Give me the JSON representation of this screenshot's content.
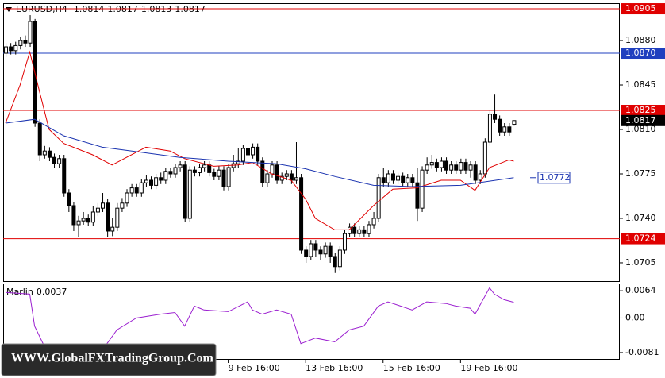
{
  "chart_data": [
    {
      "type": "candlestick",
      "title": "EURUSD,H4",
      "open": [
        1.087,
        1.0875,
        1.0872,
        1.0876,
        1.088,
        1.0878,
        1.0895,
        1.0815,
        1.079,
        1.0793,
        1.0788,
        1.0783,
        1.0787,
        1.076,
        1.075,
        1.0735,
        1.0738,
        1.074,
        1.0737,
        1.0745,
        1.0748,
        1.0752,
        1.073,
        1.0733,
        1.0748,
        1.0752,
        1.076,
        1.0764,
        1.076,
        1.0768,
        1.077,
        1.0766,
        1.0772,
        1.077,
        1.0777,
        1.0775,
        1.078,
        1.0782,
        1.074,
        1.0778,
        1.0776,
        1.078,
        1.0782,
        1.0776,
        1.0773,
        1.0778,
        1.0765,
        1.078,
        1.0783,
        1.0785,
        1.0795,
        1.079,
        1.0796,
        1.0785,
        1.0768,
        1.0775,
        1.0782,
        1.077,
        1.0773,
        1.0775,
        1.077,
        1.0772,
        1.0715,
        1.071,
        1.072,
        1.0715,
        1.0712,
        1.0718,
        1.071,
        1.0702,
        1.0715,
        1.0728,
        1.0733,
        1.0728,
        1.0731,
        1.0728,
        1.0735,
        1.074,
        1.0772,
        1.0768,
        1.0775,
        1.077,
        1.0773,
        1.0768,
        1.0772,
        1.0768,
        1.0748,
        1.0778,
        1.0782,
        1.0784,
        1.078,
        1.0785,
        1.0778,
        1.0782,
        1.0778,
        1.0784,
        1.0778,
        1.0782,
        1.077,
        1.0775,
        1.08,
        1.0822,
        1.0818,
        1.0808,
        1.0812,
        1.0814
      ],
      "high": [
        1.0878,
        1.0878,
        1.0879,
        1.0883,
        1.0884,
        1.09,
        1.0897,
        1.0818,
        1.0797,
        1.0796,
        1.0791,
        1.079,
        1.079,
        1.0763,
        1.0753,
        1.0742,
        1.0745,
        1.0743,
        1.075,
        1.0752,
        1.076,
        1.0755,
        1.074,
        1.0752,
        1.0756,
        1.0763,
        1.0767,
        1.0767,
        1.0771,
        1.0774,
        1.0773,
        1.0775,
        1.0776,
        1.078,
        1.078,
        1.0783,
        1.0785,
        1.0785,
        1.0781,
        1.0781,
        1.0783,
        1.0785,
        1.0785,
        1.0779,
        1.0781,
        1.0781,
        1.0783,
        1.079,
        1.0795,
        1.0798,
        1.0798,
        1.0799,
        1.0799,
        1.0788,
        1.0778,
        1.0785,
        1.0785,
        1.0776,
        1.0778,
        1.0778,
        1.08,
        1.0775,
        1.0718,
        1.0723,
        1.0723,
        1.0718,
        1.0721,
        1.0721,
        1.0713,
        1.0718,
        1.0731,
        1.0736,
        1.0736,
        1.0734,
        1.0734,
        1.0738,
        1.0745,
        1.0775,
        1.078,
        1.0778,
        1.0778,
        1.0776,
        1.0776,
        1.0775,
        1.0775,
        1.078,
        1.0781,
        1.0788,
        1.079,
        1.0787,
        1.0788,
        1.0788,
        1.0785,
        1.0785,
        1.0787,
        1.0787,
        1.0785,
        1.0785,
        1.0778,
        1.0803,
        1.0825,
        1.0838,
        1.0821,
        1.0815,
        1.0815,
        1.0817
      ],
      "low": [
        1.0867,
        1.0869,
        1.0869,
        1.0873,
        1.0875,
        1.0875,
        1.0812,
        1.0785,
        1.0787,
        1.0785,
        1.078,
        1.078,
        1.0757,
        1.0745,
        1.073,
        1.0725,
        1.0735,
        1.0734,
        1.0734,
        1.0742,
        1.0745,
        1.0725,
        1.0726,
        1.073,
        1.0745,
        1.0749,
        1.0757,
        1.0757,
        1.0757,
        1.0765,
        1.0763,
        1.0763,
        1.0767,
        1.0767,
        1.0772,
        1.0772,
        1.0777,
        1.0737,
        1.0737,
        1.0773,
        1.0773,
        1.0777,
        1.0773,
        1.077,
        1.077,
        1.0762,
        1.0762,
        1.0777,
        1.078,
        1.0782,
        1.0787,
        1.0787,
        1.0782,
        1.0765,
        1.0765,
        1.0772,
        1.0767,
        1.0767,
        1.077,
        1.0767,
        1.0767,
        1.0712,
        1.0705,
        1.0707,
        1.071,
        1.0707,
        1.0709,
        1.0705,
        1.0697,
        1.0699,
        1.0712,
        1.0725,
        1.0725,
        1.0725,
        1.0725,
        1.0725,
        1.0732,
        1.0737,
        1.0765,
        1.0765,
        1.0767,
        1.0767,
        1.0765,
        1.0765,
        1.0765,
        1.0738,
        1.0745,
        1.0775,
        1.0779,
        1.0777,
        1.0777,
        1.0775,
        1.0775,
        1.0775,
        1.0775,
        1.0775,
        1.0772,
        1.0767,
        1.0767,
        1.0772,
        1.0797,
        1.0815,
        1.0805,
        1.0805,
        1.0805,
        1.0813
      ],
      "close": [
        1.0875,
        1.0872,
        1.0876,
        1.088,
        1.0878,
        1.0895,
        1.0815,
        1.079,
        1.0793,
        1.0788,
        1.0783,
        1.0787,
        1.076,
        1.075,
        1.0735,
        1.0738,
        1.074,
        1.0737,
        1.0745,
        1.0748,
        1.0752,
        1.073,
        1.0733,
        1.0748,
        1.0752,
        1.076,
        1.0764,
        1.076,
        1.0768,
        1.077,
        1.0766,
        1.0772,
        1.077,
        1.0777,
        1.0775,
        1.078,
        1.0782,
        1.074,
        1.0778,
        1.0776,
        1.078,
        1.0782,
        1.0776,
        1.0773,
        1.0778,
        1.0765,
        1.078,
        1.0783,
        1.0785,
        1.0795,
        1.079,
        1.0796,
        1.0785,
        1.0768,
        1.0775,
        1.0782,
        1.077,
        1.0773,
        1.0775,
        1.077,
        1.0772,
        1.0715,
        1.071,
        1.072,
        1.0715,
        1.0712,
        1.0718,
        1.071,
        1.0702,
        1.0715,
        1.0728,
        1.0733,
        1.0728,
        1.0731,
        1.0728,
        1.0735,
        1.074,
        1.0772,
        1.0768,
        1.0775,
        1.077,
        1.0773,
        1.0768,
        1.0772,
        1.0768,
        1.0748,
        1.0778,
        1.0782,
        1.0784,
        1.078,
        1.0785,
        1.0778,
        1.0782,
        1.0778,
        1.0784,
        1.0778,
        1.0782,
        1.077,
        1.0775,
        1.08,
        1.0822,
        1.0818,
        1.0808,
        1.0812,
        1.0808,
        1.0817
      ],
      "series": [
        {
          "color": "#e00000",
          "x": [
            0,
            3,
            5,
            7,
            9,
            12,
            18,
            22,
            25,
            29,
            34,
            37,
            43,
            48,
            51,
            55,
            59,
            62,
            64,
            68,
            71,
            76,
            80,
            85,
            90,
            94,
            97,
            100,
            104,
            105
          ],
          "values": [
            1.0815,
            1.0845,
            1.0871,
            1.084,
            1.081,
            1.0799,
            1.079,
            1.0782,
            1.0788,
            1.0796,
            1.0793,
            1.0787,
            1.0781,
            1.0782,
            1.0784,
            1.0775,
            1.077,
            1.0755,
            1.074,
            1.0731,
            1.0731,
            1.075,
            1.0763,
            1.0764,
            1.077,
            1.077,
            1.0762,
            1.078,
            1.0786,
            1.0785
          ]
        },
        {
          "color": "#1a33b0",
          "x": [
            0,
            6,
            12,
            20,
            28,
            36,
            46,
            56,
            62,
            68,
            76,
            84,
            94,
            105
          ],
          "values": [
            1.0815,
            1.0818,
            1.0805,
            1.0796,
            1.0792,
            1.0788,
            1.0785,
            1.0783,
            1.0779,
            1.0773,
            1.0766,
            1.0765,
            1.0766,
            1.0772
          ]
        }
      ],
      "levels": [
        {
          "value": 1.0905,
          "color": "#e00000"
        },
        {
          "value": 1.087,
          "label": "1.0870",
          "color": "#1f3fbf"
        },
        {
          "value": 1.0825,
          "color": "#e00000"
        },
        {
          "value": 1.0724,
          "color": "#e00000"
        }
      ],
      "xlim": [
        -0.5,
        126.9
      ],
      "xticks": [
        {
          "value": 46,
          "label": "9 Feb 16:00"
        },
        {
          "value": 62,
          "label": "13 Feb 16:00"
        },
        {
          "value": 78,
          "label": "15 Feb 16:00"
        },
        {
          "value": 94,
          "label": "19 Feb 16:00"
        }
      ],
      "ylim": [
        1.06906,
        1.09094
      ],
      "yticks": [
        {
          "value": 1.088,
          "label": "1.0880"
        },
        1.0845,
        {
          "value": 1.081,
          "label": "1.0810"
        },
        1.0775,
        {
          "value": 1.074,
          "label": "1.0740"
        },
        1.0705
      ],
      "grid": false,
      "watermark": "WWW.GlobalFXTradingGroup.Com"
    },
    {
      "type": "line",
      "title": "Marlin",
      "series": [
        {
          "color": "#9b1fd0",
          "x": [
            0,
            5,
            6,
            8,
            10,
            15,
            20,
            23,
            27,
            32,
            35,
            37,
            39,
            41,
            46,
            50,
            51,
            53,
            56,
            59,
            61,
            64,
            68,
            71,
            74,
            77,
            79,
            84,
            87,
            91,
            93,
            96,
            97,
            100,
            101,
            103,
            105
          ],
          "values": [
            0.006,
            0.0056,
            -0.0019,
            -0.0066,
            -0.0075,
            -0.009,
            -0.0075,
            -0.0028,
            0.0,
            0.0009,
            0.0013,
            -0.0019,
            0.0028,
            0.0019,
            0.0015,
            0.0038,
            0.0019,
            0.0009,
            0.0019,
            0.0009,
            -0.006,
            -0.0047,
            -0.0056,
            -0.0028,
            -0.0019,
            0.0028,
            0.0038,
            0.0019,
            0.0038,
            0.0034,
            0.0028,
            0.0023,
            0.0009,
            0.0071,
            0.0056,
            0.0043,
            0.0037
          ]
        }
      ],
      "xlim": [
        -0.5,
        126.9
      ],
      "ylim": [
        -0.0096,
        0.0081
      ],
      "yticks": [
        0.0064,
        {
          "value": 0,
          "label": "0.00"
        },
        -0.0081
      ],
      "grid": false
    }
  ]
}
